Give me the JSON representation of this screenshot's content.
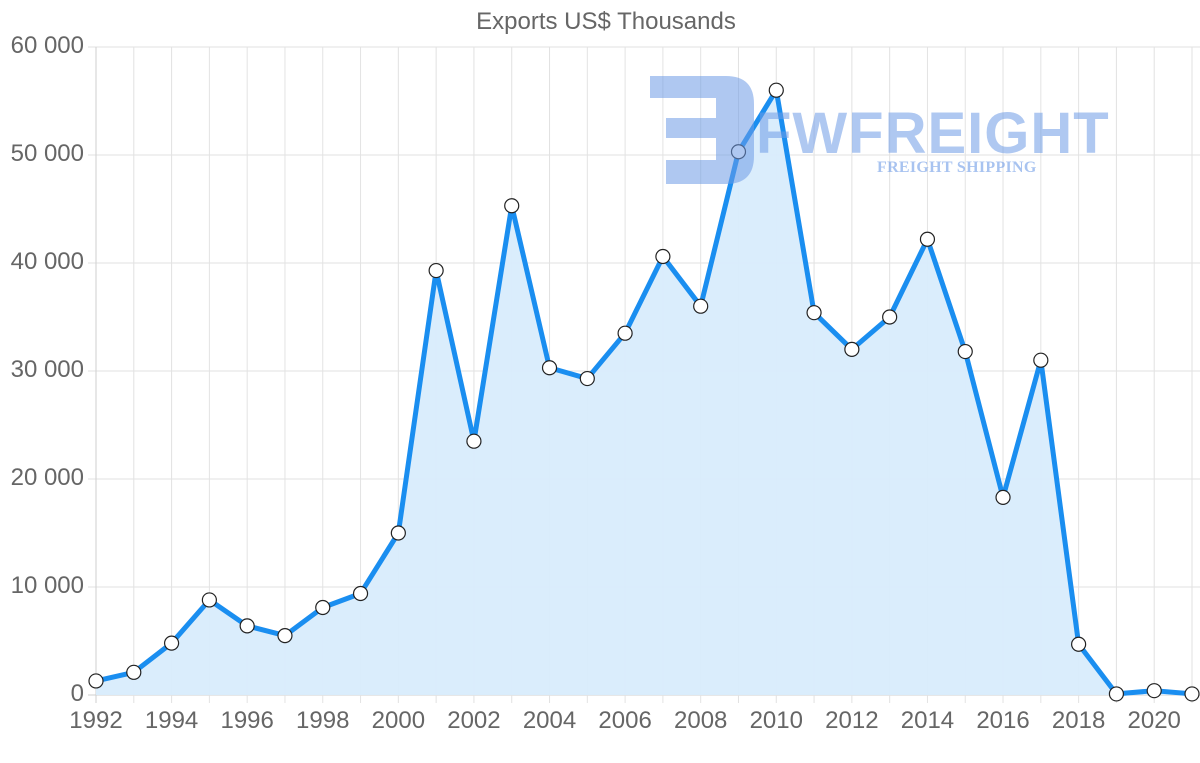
{
  "chart_data": {
    "type": "line",
    "title": "Exports US$ Thousands",
    "xlabel": "",
    "ylabel": "",
    "ylim": [
      0,
      60000
    ],
    "xlim": [
      1992,
      2021
    ],
    "grid": true,
    "legend": null,
    "fill": true,
    "colors": {
      "line": "#1a8ef0",
      "fill": "#d8ecfc",
      "marker_fill": "#ffffff",
      "marker_stroke": "#222222",
      "grid": "#e2e2e2",
      "axis_text": "#666666"
    },
    "y_ticks": [
      0,
      10000,
      20000,
      30000,
      40000,
      50000,
      60000
    ],
    "y_tick_labels": [
      "0",
      "10 000",
      "20 000",
      "30 000",
      "40 000",
      "50 000",
      "60 000"
    ],
    "x_tick_labels": [
      "1992",
      "1994",
      "1996",
      "1998",
      "2000",
      "2002",
      "2004",
      "2006",
      "2008",
      "2010",
      "2012",
      "2014",
      "2016",
      "2018",
      "2020"
    ],
    "x": [
      1992,
      1993,
      1994,
      1995,
      1996,
      1997,
      1998,
      1999,
      2000,
      2001,
      2002,
      2003,
      2004,
      2005,
      2006,
      2007,
      2008,
      2009,
      2010,
      2011,
      2012,
      2013,
      2014,
      2015,
      2016,
      2017,
      2018,
      2019,
      2020,
      2021
    ],
    "series": [
      {
        "name": "Exports US$ Thousands",
        "values": [
          1300,
          2100,
          4800,
          8800,
          6400,
          5500,
          8100,
          9400,
          15000,
          39300,
          23500,
          45300,
          30300,
          29300,
          33500,
          40600,
          36000,
          50300,
          56000,
          35400,
          32000,
          35000,
          42200,
          31800,
          18300,
          31000,
          4700,
          100,
          400,
          100
        ]
      }
    ]
  },
  "watermark": {
    "brand": "FWFREIGHT",
    "tagline": "FREIGHT SHIPPING"
  }
}
